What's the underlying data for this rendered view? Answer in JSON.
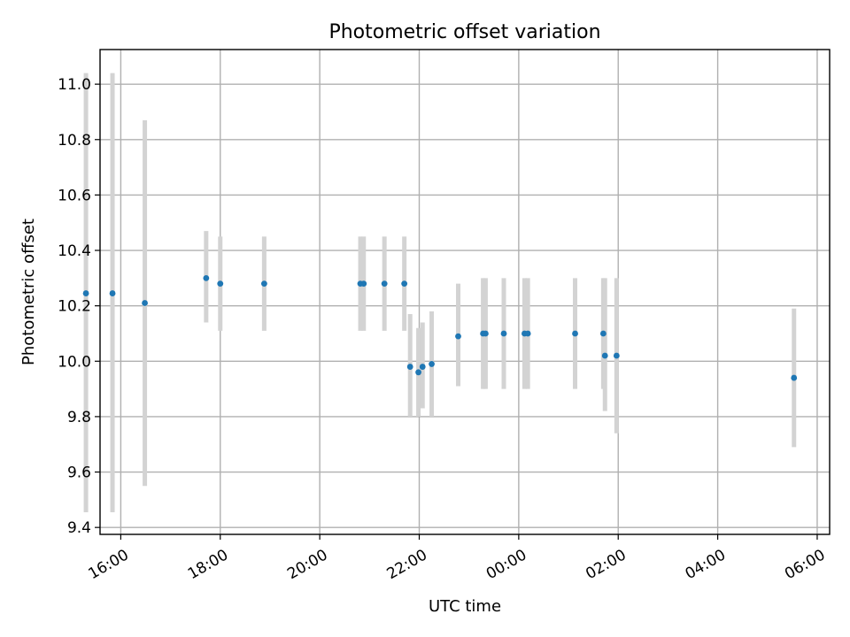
{
  "chart_data": {
    "type": "scatter",
    "title": "Photometric offset variation",
    "xlabel": "UTC time",
    "ylabel": "Photometric offset",
    "x_axis_kind": "time (hours after the 15:00 reference, ticks shown as HH:MM)",
    "xlim": [
      "15:35",
      "06:15"
    ],
    "ylim": [
      9.375,
      11.125
    ],
    "xticks": [
      {
        "label": "16:00",
        "value": "16:00"
      },
      {
        "label": "18:00",
        "value": "18:00"
      },
      {
        "label": "20:00",
        "value": "20:00"
      },
      {
        "label": "22:00",
        "value": "22:00"
      },
      {
        "label": "00:00",
        "value": "00:00"
      },
      {
        "label": "02:00",
        "value": "02:00"
      },
      {
        "label": "04:00",
        "value": "04:00"
      },
      {
        "label": "06:00",
        "value": "06:00"
      }
    ],
    "yticks": [
      {
        "label": "9.4",
        "value": 9.4
      },
      {
        "label": "9.6",
        "value": 9.6
      },
      {
        "label": "9.8",
        "value": 9.8
      },
      {
        "label": "10.0",
        "value": 10.0
      },
      {
        "label": "10.2",
        "value": 10.2
      },
      {
        "label": "10.4",
        "value": 10.4
      },
      {
        "label": "10.6",
        "value": 10.6
      },
      {
        "label": "10.8",
        "value": 10.8
      },
      {
        "label": "11.0",
        "value": 11.0
      }
    ],
    "grid": true,
    "marker_color": "#1f77b4",
    "errorbar_color": "#d3d3d3",
    "points": [
      {
        "time": "15:18",
        "y": 10.245,
        "lo": 9.455,
        "hi": 11.04
      },
      {
        "time": "15:50",
        "y": 10.245,
        "lo": 9.455,
        "hi": 11.04
      },
      {
        "time": "16:29",
        "y": 10.21,
        "lo": 9.55,
        "hi": 10.87
      },
      {
        "time": "17:43",
        "y": 10.3,
        "lo": 10.14,
        "hi": 10.47
      },
      {
        "time": "18:00",
        "y": 10.28,
        "lo": 10.11,
        "hi": 10.45
      },
      {
        "time": "18:53",
        "y": 10.28,
        "lo": 10.11,
        "hi": 10.45
      },
      {
        "time": "20:49",
        "y": 10.28,
        "lo": 10.11,
        "hi": 10.45
      },
      {
        "time": "20:53",
        "y": 10.28,
        "lo": 10.11,
        "hi": 10.45
      },
      {
        "time": "21:18",
        "y": 10.28,
        "lo": 10.11,
        "hi": 10.45
      },
      {
        "time": "21:42",
        "y": 10.28,
        "lo": 10.11,
        "hi": 10.45
      },
      {
        "time": "21:49",
        "y": 9.98,
        "lo": 9.8,
        "hi": 10.17
      },
      {
        "time": "21:59",
        "y": 9.96,
        "lo": 9.8,
        "hi": 10.12
      },
      {
        "time": "22:04",
        "y": 9.98,
        "lo": 9.83,
        "hi": 10.14
      },
      {
        "time": "22:15",
        "y": 9.99,
        "lo": 9.8,
        "hi": 10.18
      },
      {
        "time": "22:47",
        "y": 10.09,
        "lo": 9.91,
        "hi": 10.28
      },
      {
        "time": "23:17",
        "y": 10.1,
        "lo": 9.9,
        "hi": 10.3
      },
      {
        "time": "23:20",
        "y": 10.1,
        "lo": 9.9,
        "hi": 10.3
      },
      {
        "time": "23:42",
        "y": 10.1,
        "lo": 9.9,
        "hi": 10.3
      },
      {
        "time": "00:07",
        "y": 10.1,
        "lo": 9.9,
        "hi": 10.3
      },
      {
        "time": "00:11",
        "y": 10.1,
        "lo": 9.9,
        "hi": 10.3
      },
      {
        "time": "01:08",
        "y": 10.1,
        "lo": 9.9,
        "hi": 10.3
      },
      {
        "time": "01:42",
        "y": 10.1,
        "lo": 9.9,
        "hi": 10.3
      },
      {
        "time": "01:44",
        "y": 10.02,
        "lo": 9.82,
        "hi": 10.3
      },
      {
        "time": "01:58",
        "y": 10.02,
        "lo": 9.74,
        "hi": 10.3
      },
      {
        "time": "05:32",
        "y": 9.94,
        "lo": 9.69,
        "hi": 10.19
      }
    ]
  }
}
